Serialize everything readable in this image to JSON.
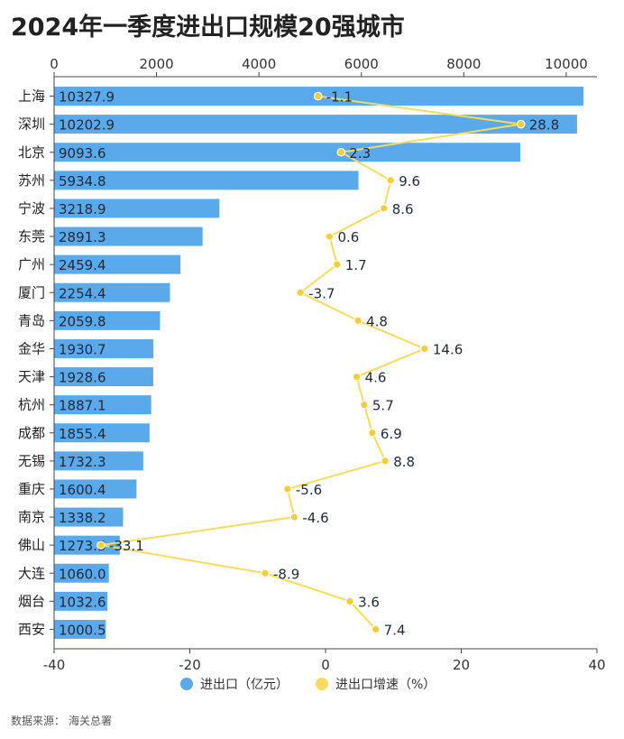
{
  "title": "2024年一季度进出口规模20强城市",
  "legend": {
    "bar_label": "进出口（亿元）",
    "line_label": "进出口增速（%）"
  },
  "source": {
    "label": "数据来源：",
    "value": "海关总署"
  },
  "colors": {
    "bar": "#5aa9ea",
    "line": "#f5dc5a",
    "point": "#f2cf3a"
  },
  "chart_data": {
    "type": "bar",
    "orientation": "horizontal",
    "categories": [
      "上海",
      "深圳",
      "北京",
      "苏州",
      "宁波",
      "东莞",
      "广州",
      "厦门",
      "青岛",
      "金华",
      "天津",
      "杭州",
      "成都",
      "无锡",
      "重庆",
      "南京",
      "佛山",
      "大连",
      "烟台",
      "西安"
    ],
    "series": [
      {
        "name": "进出口（亿元）",
        "type": "bar",
        "axis": "top",
        "values": [
          10327.9,
          10202.9,
          9093.6,
          5934.8,
          3218.9,
          2891.3,
          2459.4,
          2254.4,
          2059.8,
          1930.7,
          1928.6,
          1887.1,
          1855.4,
          1732.3,
          1600.4,
          1338.2,
          1273.3,
          1060.0,
          1032.6,
          1000.5
        ],
        "labels": [
          "10327.9",
          "10202.9",
          "9093.6",
          "5934.8",
          "3218.9",
          "2891.3",
          "2459.4",
          "2254.4",
          "2059.8",
          "1930.7",
          "1928.6",
          "1887.1",
          "1855.4",
          "1732.3",
          "1600.4",
          "1338.2",
          "1273.3",
          "1060.0",
          "1032.6",
          "1000.5"
        ]
      },
      {
        "name": "进出口增速（%）",
        "type": "line",
        "axis": "bottom",
        "values": [
          -1.1,
          28.8,
          2.3,
          9.6,
          8.6,
          0.6,
          1.7,
          -3.7,
          4.8,
          14.6,
          4.6,
          5.7,
          6.9,
          8.8,
          -5.6,
          -4.6,
          -33.1,
          -8.9,
          3.6,
          7.4
        ],
        "labels": [
          "-1.1",
          "28.8",
          "2.3",
          "9.6",
          "8.6",
          "0.6",
          "1.7",
          "-3.7",
          "4.8",
          "14.6",
          "4.6",
          "5.7",
          "6.9",
          "8.8",
          "-5.6",
          "-4.6",
          "-33.1",
          "-8.9",
          "3.6",
          "7.4"
        ]
      }
    ],
    "top_axis": {
      "range": [
        0,
        10600
      ],
      "ticks": [
        0,
        2000,
        4000,
        6000,
        8000,
        10000
      ],
      "tick_labels": [
        "0",
        "2000",
        "4000",
        "6000",
        "8000",
        "10000"
      ]
    },
    "bottom_axis": {
      "range": [
        -40,
        40
      ],
      "ticks": [
        -40,
        -20,
        0,
        20,
        40
      ],
      "tick_labels": [
        "-40",
        "-20",
        "0",
        "20",
        "40"
      ]
    },
    "grid": false,
    "legend_position": "bottom"
  }
}
